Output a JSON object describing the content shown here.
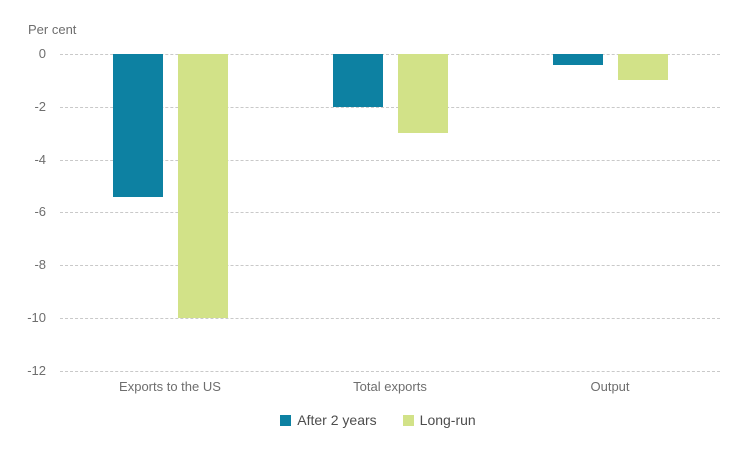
{
  "chart_data": {
    "type": "bar",
    "ylabel": "Per cent",
    "categories": [
      "Exports to the US",
      "Total exports",
      "Output"
    ],
    "series": [
      {
        "name": "After 2 years",
        "color": "#0d81a2",
        "values": [
          -5.4,
          -2.0,
          -0.4
        ]
      },
      {
        "name": "Long-run",
        "color": "#d2e288",
        "values": [
          -10.0,
          -3.0,
          -1.0
        ]
      }
    ],
    "ylim": [
      -12,
      0
    ],
    "ytick_step": 2,
    "grid": "horizontal-dashed",
    "gridline_color": "#c9c9c9",
    "legend_position": "bottom-center",
    "bar_orientation": "vertical-downward"
  }
}
